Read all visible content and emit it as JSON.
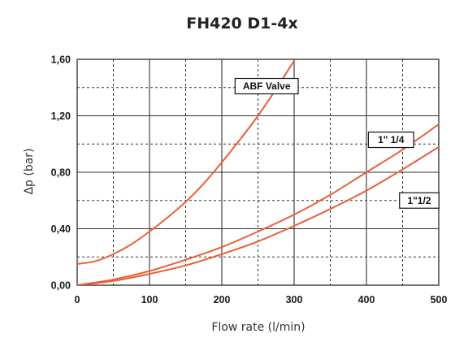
{
  "chart_data": {
    "type": "line",
    "title": "FH420 D1-4x",
    "xlabel": "Flow rate (l/min)",
    "ylabel": "Δp (bar)",
    "xlim": [
      0,
      500
    ],
    "ylim": [
      0,
      1.6
    ],
    "x_ticks": [
      "0",
      "100",
      "200",
      "300",
      "400",
      "500"
    ],
    "y_ticks": [
      "0,00",
      "0,40",
      "0,80",
      "1,20",
      "1,60"
    ],
    "grid": {
      "major": true,
      "minor_dashed": true
    },
    "series_color": "#e8603a",
    "series": [
      {
        "name": "ABF Valve",
        "x": [
          0,
          25,
          50,
          75,
          100,
          125,
          150,
          175,
          200,
          225,
          250,
          275,
          300
        ],
        "values": [
          0.15,
          0.17,
          0.22,
          0.29,
          0.38,
          0.48,
          0.59,
          0.72,
          0.87,
          1.03,
          1.2,
          1.39,
          1.59
        ]
      },
      {
        "name": "1\" 1/4",
        "x": [
          0,
          50,
          100,
          150,
          200,
          250,
          300,
          350,
          400,
          450,
          500
        ],
        "values": [
          0,
          0.04,
          0.1,
          0.18,
          0.27,
          0.38,
          0.5,
          0.64,
          0.8,
          0.96,
          1.14
        ]
      },
      {
        "name": "1\"1/2",
        "x": [
          0,
          50,
          100,
          150,
          200,
          250,
          300,
          350,
          400,
          450,
          500
        ],
        "values": [
          0,
          0.03,
          0.08,
          0.14,
          0.22,
          0.31,
          0.42,
          0.54,
          0.67,
          0.82,
          0.98
        ]
      }
    ]
  }
}
